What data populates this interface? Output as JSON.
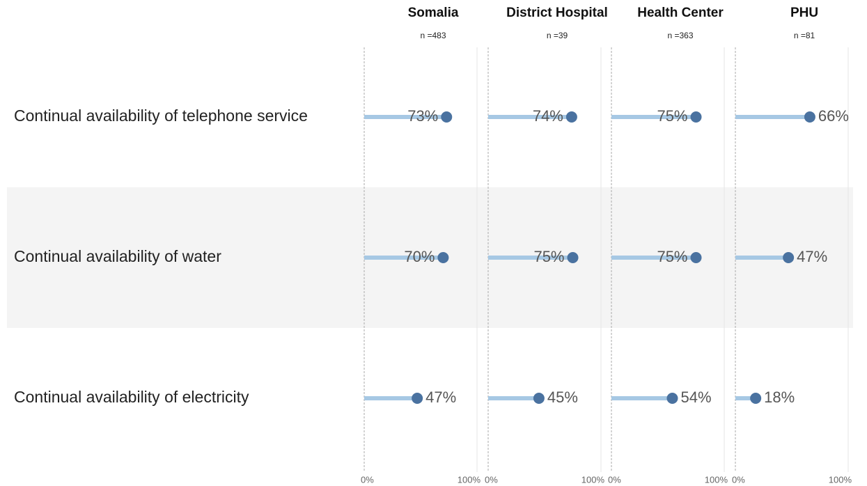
{
  "chart_data": {
    "type": "lollipop",
    "categories": [
      "Continual availability of telephone service",
      "Continual availability of water",
      "Continual availability of electricity"
    ],
    "xlim": [
      0,
      100
    ],
    "xticks": [
      {
        "value": 0,
        "label": "0%"
      },
      {
        "value": 100,
        "label": "100%"
      }
    ],
    "bar_color": "#a6c8e4",
    "dot_color": "#4a72a0",
    "panels": [
      {
        "title": "Somalia",
        "subtitle": "n =483",
        "values": [
          73,
          70,
          47
        ],
        "value_labels": [
          "73%",
          "70%",
          "47%"
        ]
      },
      {
        "title": "District Hospital",
        "subtitle": "n =39",
        "values": [
          74,
          75,
          45
        ],
        "value_labels": [
          "74%",
          "75%",
          "45%"
        ]
      },
      {
        "title": "Health Center",
        "subtitle": "n =363",
        "values": [
          75,
          75,
          54
        ],
        "value_labels": [
          "75%",
          "75%",
          "54%"
        ]
      },
      {
        "title": "PHU",
        "subtitle": "n =81",
        "values": [
          66,
          47,
          18
        ],
        "value_labels": [
          "66%",
          "47%",
          "18%"
        ]
      }
    ]
  }
}
